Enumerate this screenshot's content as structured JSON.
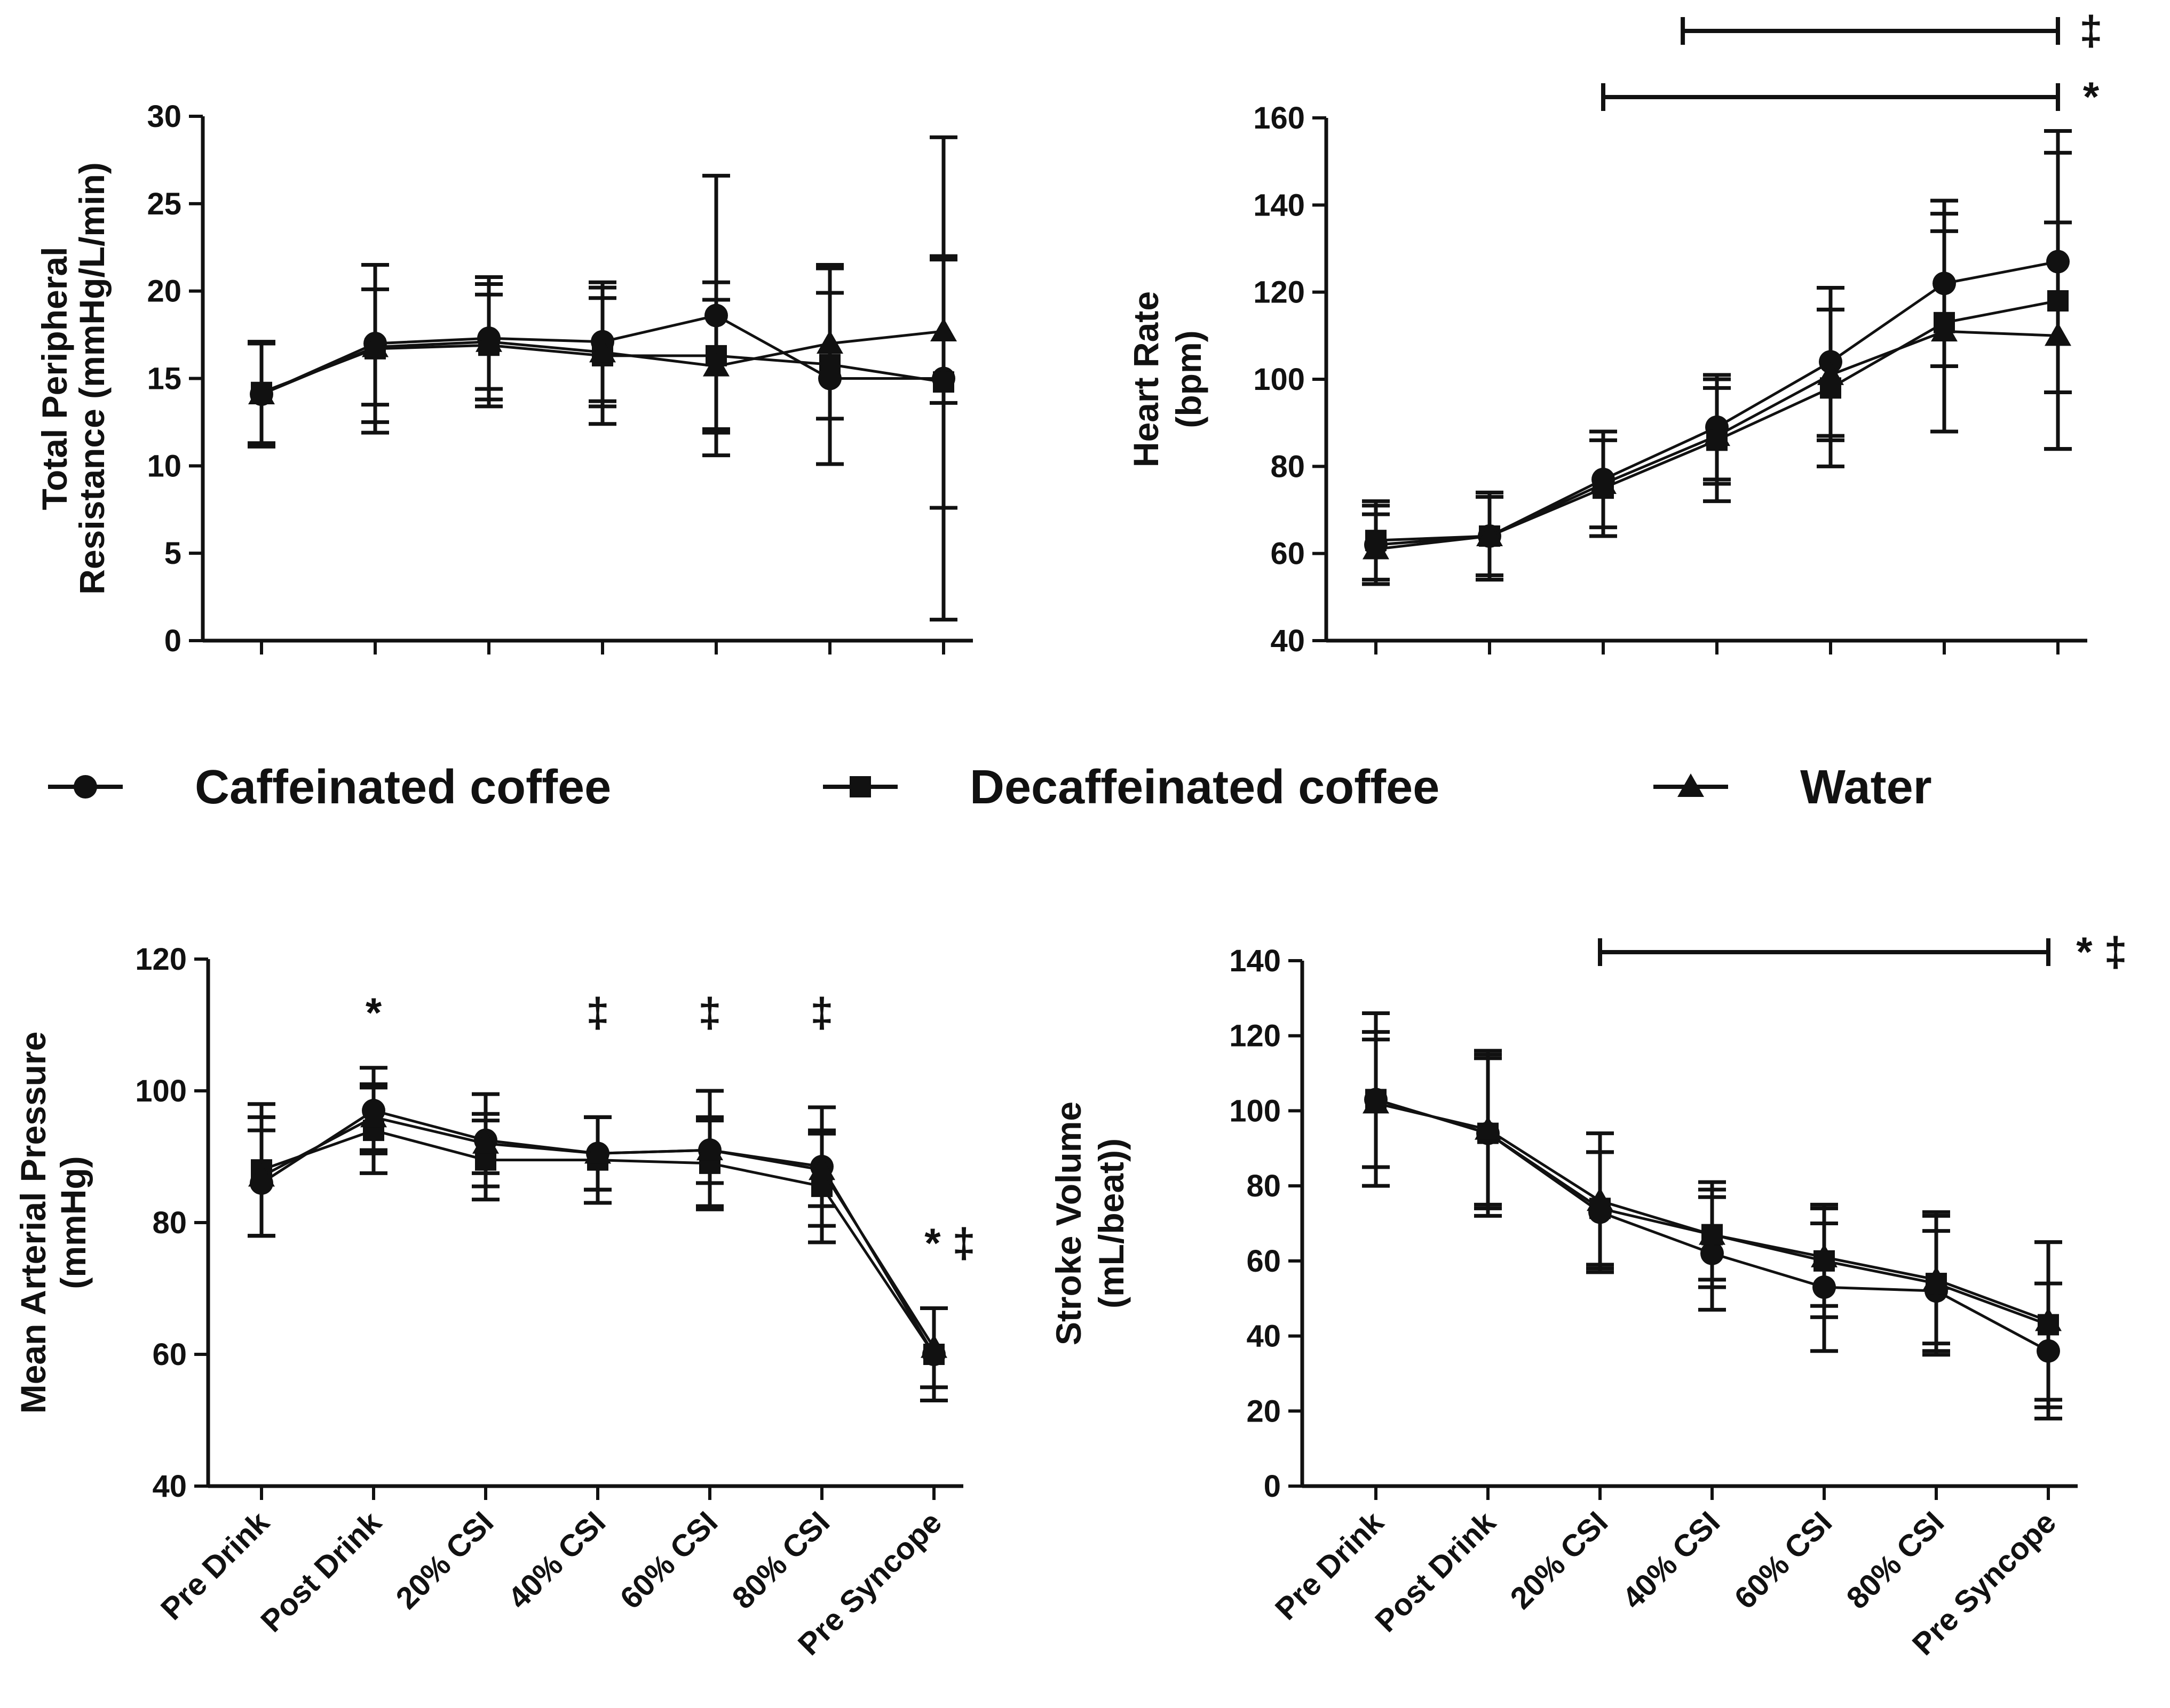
{
  "legend": [
    {
      "label": "Caffeinated coffee",
      "marker": "circle"
    },
    {
      "label": "Decaffeinated coffee",
      "marker": "square"
    },
    {
      "label": "Water",
      "marker": "triangle"
    }
  ],
  "colors": {
    "ink": "#111111",
    "background": "#ffffff"
  },
  "chart_data": [
    {
      "id": "tpr",
      "type": "line",
      "title": "",
      "ylabel_lines": [
        "Total Peripheral",
        "Resistance (mmHg/L/min)"
      ],
      "xlabel": "",
      "categories": [
        "Pre Drink",
        "Post Drink",
        "20% CSI",
        "40% CSI",
        "60% CSI",
        "80% CSI",
        "Pre Syncope"
      ],
      "show_xtick_labels": false,
      "ylim": [
        0,
        30
      ],
      "yticks": [
        0,
        5,
        10,
        15,
        20,
        25,
        30
      ],
      "series": [
        {
          "name": "Caffeinated coffee",
          "marker": "circle",
          "values": [
            14.1,
            17.0,
            17.3,
            17.1,
            18.6,
            15.0,
            15.0
          ],
          "err": [
            3.0,
            4.5,
            3.5,
            3.4,
            8.0,
            4.9,
            13.8
          ]
        },
        {
          "name": "Decaffeinated coffee",
          "marker": "square",
          "values": [
            14.2,
            16.7,
            16.9,
            16.3,
            16.3,
            15.8,
            14.8
          ],
          "err": [
            2.9,
            4.8,
            3.5,
            3.9,
            4.2,
            5.7,
            7.2
          ]
        },
        {
          "name": "Water",
          "marker": "triangle",
          "values": [
            14.1,
            16.8,
            17.1,
            16.5,
            15.7,
            17.0,
            17.7
          ],
          "err": [
            2.9,
            3.3,
            2.7,
            3.1,
            3.8,
            4.3,
            4.1
          ]
        }
      ],
      "annotations": []
    },
    {
      "id": "hr",
      "type": "line",
      "title": "",
      "ylabel_lines": [
        "Heart Rate",
        "(bpm)"
      ],
      "xlabel": "",
      "categories": [
        "Pre Drink",
        "Post Drink",
        "20% CSI",
        "40% CSI",
        "60% CSI",
        "80% CSI",
        "Pre Syncope"
      ],
      "show_xtick_labels": false,
      "ylim": [
        40,
        160
      ],
      "yticks": [
        40,
        60,
        80,
        100,
        120,
        140,
        160
      ],
      "series": [
        {
          "name": "Caffeinated coffee",
          "marker": "circle",
          "values": [
            62,
            64,
            77,
            89,
            104,
            122,
            127
          ],
          "err": [
            9,
            10,
            11,
            12,
            17,
            19,
            30
          ]
        },
        {
          "name": "Decaffeinated coffee",
          "marker": "square",
          "values": [
            63,
            64,
            75,
            86,
            98,
            113,
            118
          ],
          "err": [
            9,
            10,
            11,
            14,
            18,
            25,
            34
          ]
        },
        {
          "name": "Water",
          "marker": "triangle",
          "values": [
            61,
            64,
            76,
            87,
            101,
            111,
            110
          ],
          "err": [
            8,
            9,
            12,
            11,
            15,
            23,
            26
          ]
        }
      ],
      "annotations": [
        {
          "type": "bracket",
          "from": 2.7,
          "to": 6.0,
          "row": 0,
          "label": "‡"
        },
        {
          "type": "bracket",
          "from": 2.0,
          "to": 6.0,
          "row": 1,
          "label": "*"
        }
      ]
    },
    {
      "id": "map",
      "type": "line",
      "title": "",
      "ylabel_lines": [
        "Mean Arterial Pressure",
        "(mmHg)"
      ],
      "xlabel": "",
      "categories": [
        "Pre Drink",
        "Post Drink",
        "20% CSI",
        "40% CSI",
        "60% CSI",
        "80% CSI",
        "Pre Syncope"
      ],
      "show_xtick_labels": true,
      "ylim": [
        40,
        120
      ],
      "yticks": [
        40,
        60,
        80,
        100,
        120
      ],
      "series": [
        {
          "name": "Caffeinated coffee",
          "marker": "circle",
          "values": [
            86,
            97,
            92.5,
            90.5,
            91,
            88.5,
            60
          ],
          "err": [
            8,
            6.5,
            7,
            5.5,
            9,
            9,
            7
          ]
        },
        {
          "name": "Decaffeinated coffee",
          "marker": "square",
          "values": [
            88,
            94,
            89.5,
            89.5,
            89,
            85.5,
            60
          ],
          "err": [
            10,
            6.5,
            6,
            6.5,
            6.5,
            8.5,
            7
          ]
        },
        {
          "name": "Water",
          "marker": "triangle",
          "values": [
            87,
            96,
            92,
            90.5,
            91,
            88,
            61
          ],
          "err": [
            9,
            5,
            4.5,
            5.5,
            5,
            5.5,
            6
          ]
        }
      ],
      "annotations": [
        {
          "type": "text",
          "category": 1,
          "label": "*"
        },
        {
          "type": "text",
          "category": 3,
          "label": "‡"
        },
        {
          "type": "text",
          "category": 4,
          "label": "‡"
        },
        {
          "type": "text",
          "category": 5,
          "label": "‡"
        },
        {
          "type": "text",
          "category": 6,
          "label": "* ‡"
        }
      ]
    },
    {
      "id": "sv",
      "type": "line",
      "title": "",
      "ylabel_lines": [
        "Stroke Volume",
        "(mL/beat))"
      ],
      "xlabel": "",
      "categories": [
        "Pre Drink",
        "Post Drink",
        "20% CSI",
        "40% CSI",
        "60% CSI",
        "80% CSI",
        "Pre Syncope"
      ],
      "show_xtick_labels": true,
      "ylim": [
        0,
        140
      ],
      "yticks": [
        0,
        20,
        40,
        60,
        80,
        100,
        120,
        140
      ],
      "series": [
        {
          "name": "Caffeinated coffee",
          "marker": "circle",
          "values": [
            103,
            94,
            73,
            62,
            53,
            52,
            36
          ],
          "err": [
            18,
            20,
            16,
            15,
            17,
            16,
            18
          ]
        },
        {
          "name": "Decaffeinated coffee",
          "marker": "square",
          "values": [
            103,
            94,
            74,
            67,
            60,
            54,
            43
          ],
          "err": [
            23,
            22,
            15,
            14,
            15,
            19,
            22
          ]
        },
        {
          "name": "Water",
          "marker": "triangle",
          "values": [
            102,
            95,
            76,
            67,
            61,
            55,
            44
          ],
          "err": [
            17,
            20,
            18,
            12,
            13,
            17,
            21
          ]
        }
      ],
      "annotations": [
        {
          "type": "bracket",
          "from": 2.0,
          "to": 6.0,
          "row": 0,
          "label": "* ‡"
        }
      ]
    }
  ]
}
